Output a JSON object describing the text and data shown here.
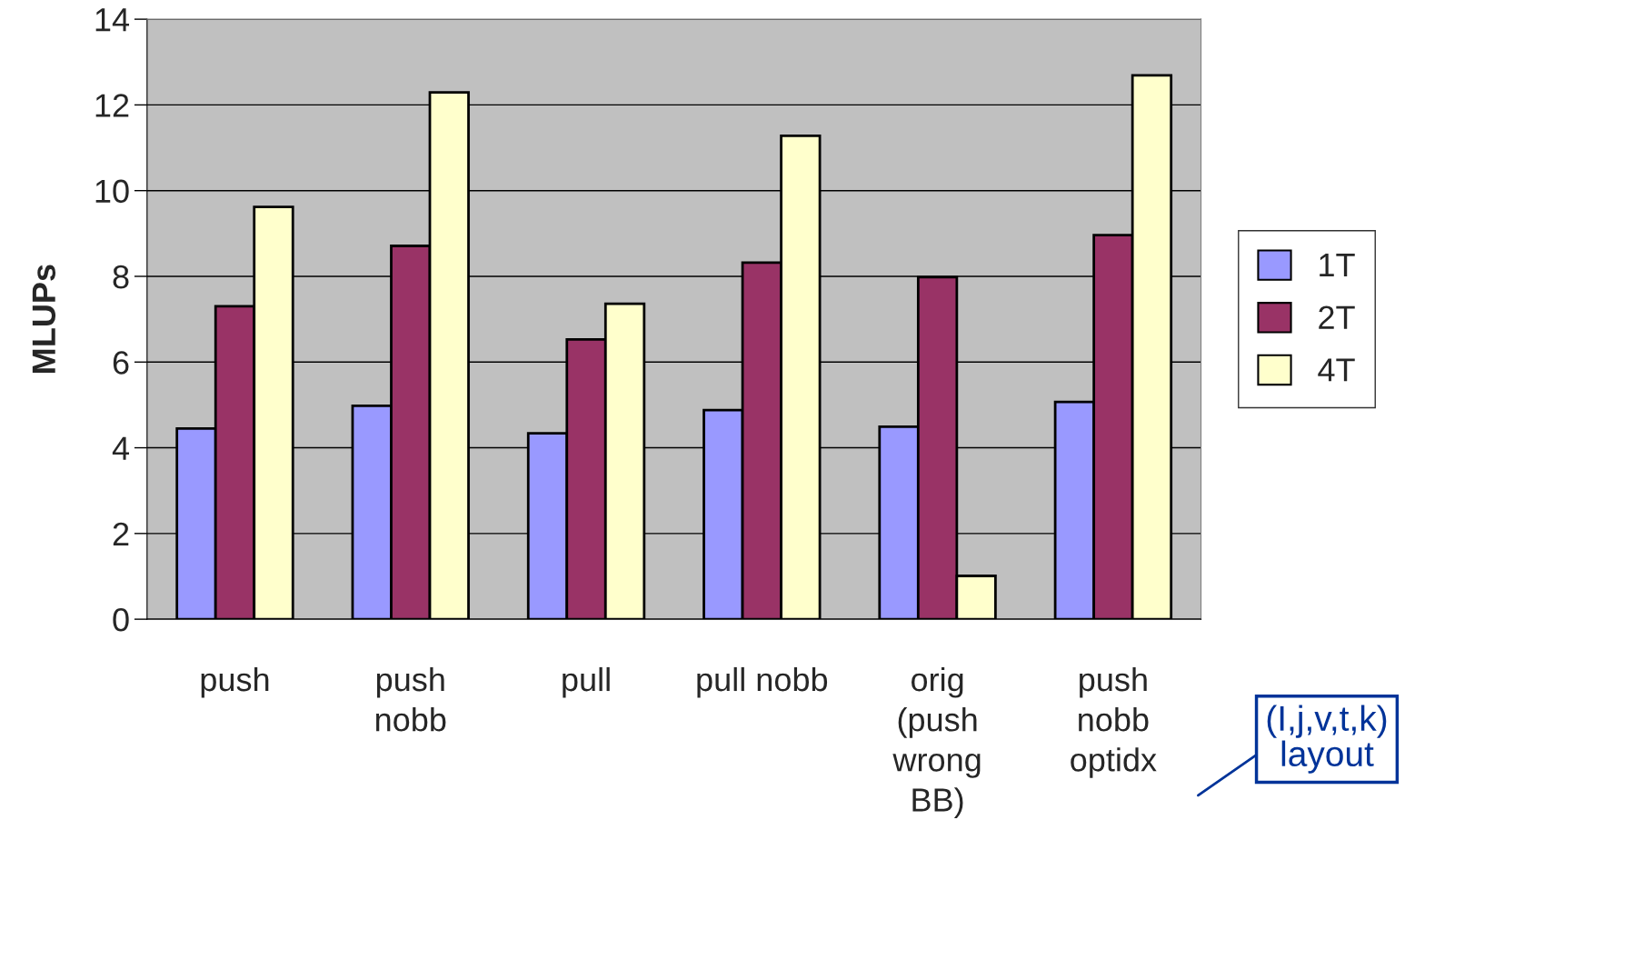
{
  "chart_data": {
    "type": "bar",
    "ylabel": "MLUPs",
    "categories": [
      "push",
      "push\nnobb",
      "pull",
      "pull nobb",
      "orig\n(push\nwrong\nBB)",
      "push\nnobb\noptidx"
    ],
    "series": [
      {
        "name": "1T",
        "color": "#9999ff",
        "values": [
          4.45,
          4.98,
          4.34,
          4.88,
          4.49,
          5.07
        ]
      },
      {
        "name": "2T",
        "color": "#993366",
        "values": [
          7.3,
          8.71,
          6.53,
          8.32,
          7.98,
          8.96
        ]
      },
      {
        "name": "4T",
        "color": "#ffffcc",
        "values": [
          9.62,
          12.29,
          7.36,
          11.28,
          1.01,
          12.69
        ]
      }
    ],
    "ylim": [
      0,
      14
    ],
    "yticks": [
      0,
      2,
      4,
      6,
      8,
      10,
      12,
      14
    ],
    "grid": "y",
    "legend": "right",
    "annotations": [
      "(I,j,v,t,k)\nlayout"
    ]
  }
}
